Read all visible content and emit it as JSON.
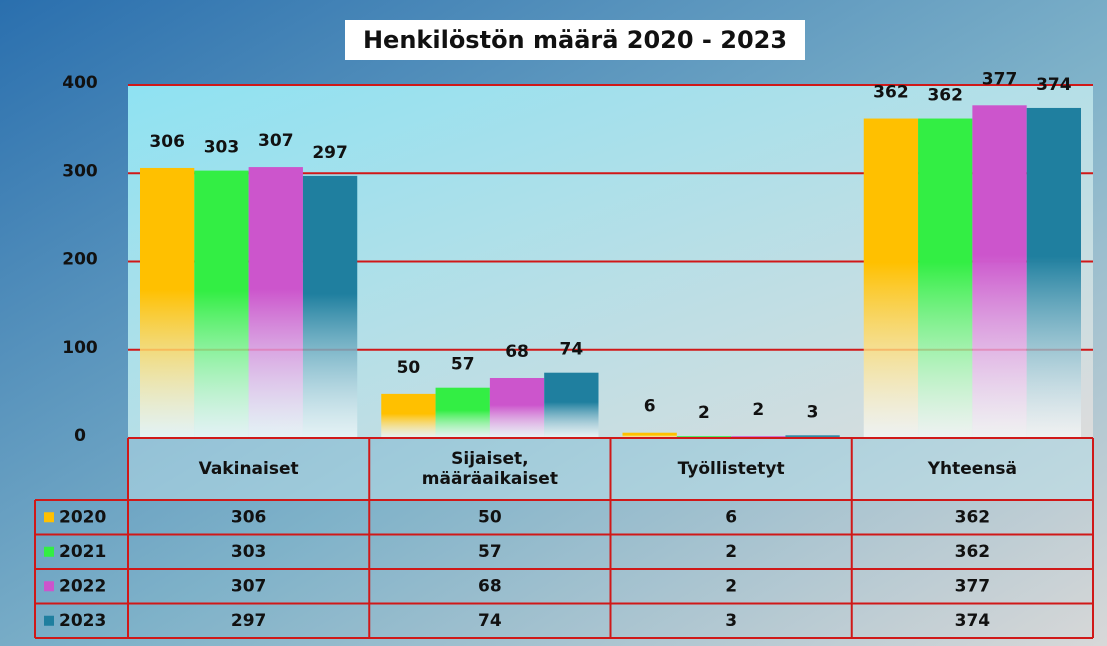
{
  "chart_data": {
    "type": "bar",
    "title": "Henkilöstön määrä 2020 - 2023",
    "categories": [
      "Vakinaiset",
      "Sijaiset, määräaikaiset",
      "Työllistetyt",
      "Yhteensä"
    ],
    "series": [
      {
        "name": "2020",
        "color": "#ffc000",
        "values": [
          306,
          50,
          6,
          362
        ]
      },
      {
        "name": "2021",
        "color": "#33ee44",
        "values": [
          303,
          57,
          2,
          362
        ]
      },
      {
        "name": "2022",
        "color": "#cc55cc",
        "values": [
          307,
          68,
          2,
          377
        ]
      },
      {
        "name": "2023",
        "color": "#1f7f9f",
        "values": [
          297,
          74,
          3,
          374
        ]
      }
    ],
    "ylim": [
      0,
      400
    ],
    "yticks": [
      0,
      100,
      200,
      300,
      400
    ],
    "grid": true,
    "data_table": true
  }
}
